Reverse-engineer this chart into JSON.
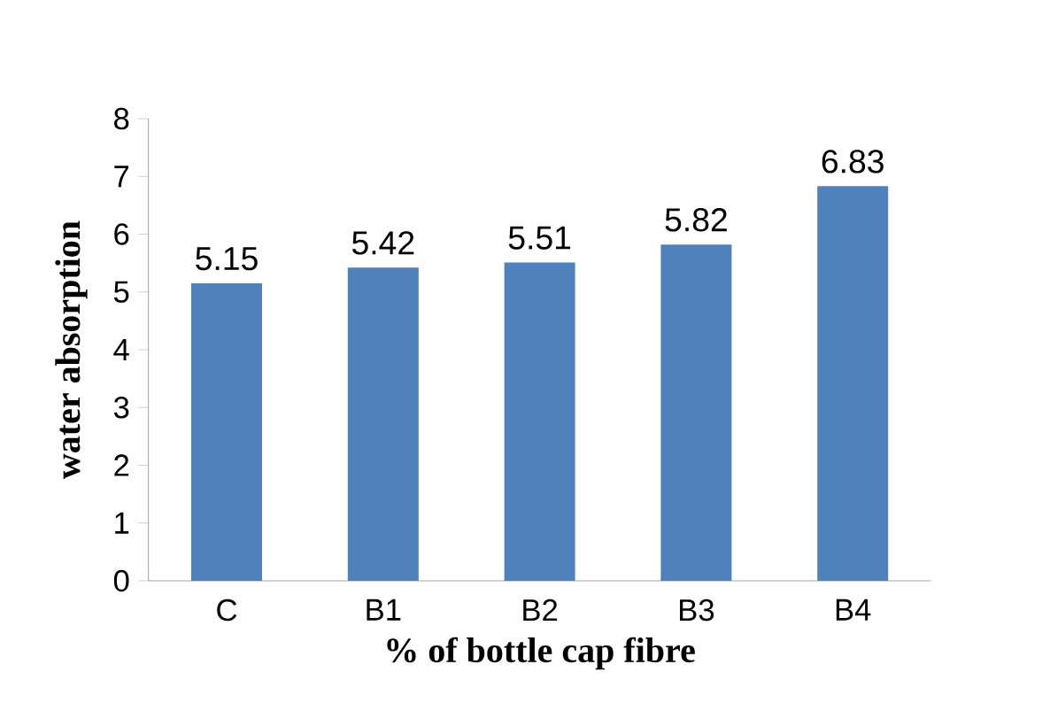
{
  "chart_data": {
    "type": "bar",
    "xlabel": "% of  bottle cap fibre",
    "ylabel": "water absorption",
    "categories": [
      "C",
      "B1",
      "B2",
      "B3",
      "B4"
    ],
    "values": [
      5.15,
      5.42,
      5.51,
      5.82,
      6.83
    ],
    "color": "#4f81bd",
    "ylim": [
      0,
      8
    ],
    "yticks": [
      0,
      1,
      2,
      3,
      4,
      5,
      6,
      7,
      8
    ],
    "data_labels": true,
    "grid": false
  }
}
